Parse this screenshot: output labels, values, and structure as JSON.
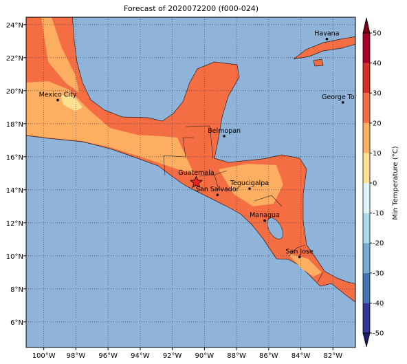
{
  "title": "Forecast of 2020072200 (f000-024)",
  "map": {
    "xlim": [
      -101.1,
      -80.6
    ],
    "ylim": [
      4.45,
      24.45
    ],
    "xticks": [
      {
        "value": -100,
        "label": "100°W"
      },
      {
        "value": -98,
        "label": "98°W"
      },
      {
        "value": -96,
        "label": "96°W"
      },
      {
        "value": -94,
        "label": "94°W"
      },
      {
        "value": -92,
        "label": "92°W"
      },
      {
        "value": -90,
        "label": "90°W"
      },
      {
        "value": -88,
        "label": "88°W"
      },
      {
        "value": -86,
        "label": "86°W"
      },
      {
        "value": -84,
        "label": "84°W"
      },
      {
        "value": -82,
        "label": "82°W"
      }
    ],
    "yticks": [
      {
        "value": 6,
        "label": "6°N"
      },
      {
        "value": 8,
        "label": "8°N"
      },
      {
        "value": 10,
        "label": "10°N"
      },
      {
        "value": 12,
        "label": "12°N"
      },
      {
        "value": 14,
        "label": "14°N"
      },
      {
        "value": 16,
        "label": "16°N"
      },
      {
        "value": 18,
        "label": "18°N"
      },
      {
        "value": 20,
        "label": "20°N"
      },
      {
        "value": 22,
        "label": "22°N"
      },
      {
        "value": 24,
        "label": "24°N"
      }
    ]
  },
  "cities": [
    {
      "name": "Mexico City",
      "lon": -99.13,
      "lat": 19.43
    },
    {
      "name": "Belmopan",
      "lon": -88.77,
      "lat": 17.25
    },
    {
      "name": "Guatemala",
      "lon": -90.51,
      "lat": 14.45,
      "marker": "star"
    },
    {
      "name": "San Salvador",
      "lon": -89.19,
      "lat": 13.69
    },
    {
      "name": "Tegucigalpa",
      "lon": -87.19,
      "lat": 14.07
    },
    {
      "name": "Managua",
      "lon": -86.25,
      "lat": 12.13
    },
    {
      "name": "San Jose",
      "lon": -84.08,
      "lat": 9.93
    },
    {
      "name": "Havana",
      "lon": -82.38,
      "lat": 23.13
    },
    {
      "name": "George Town",
      "lon": -81.38,
      "lat": 19.29
    }
  ],
  "colorbar": {
    "label": "Min Temperature (°C)",
    "lim": [
      -50,
      50
    ],
    "ticks": [
      -50,
      -40,
      -30,
      -20,
      -10,
      0,
      10,
      20,
      30,
      40,
      50
    ],
    "levels": [
      -50,
      -40,
      -30,
      -20,
      -10,
      0,
      10,
      20,
      30,
      40,
      50
    ],
    "colors": [
      "#313695",
      "#4575b4",
      "#74add1",
      "#abd9e9",
      "#e0f3f8",
      "#fee090",
      "#fdae61",
      "#f46d43",
      "#d73027",
      "#a50026"
    ],
    "under": "#1f1d66",
    "over": "#7a0016"
  }
}
